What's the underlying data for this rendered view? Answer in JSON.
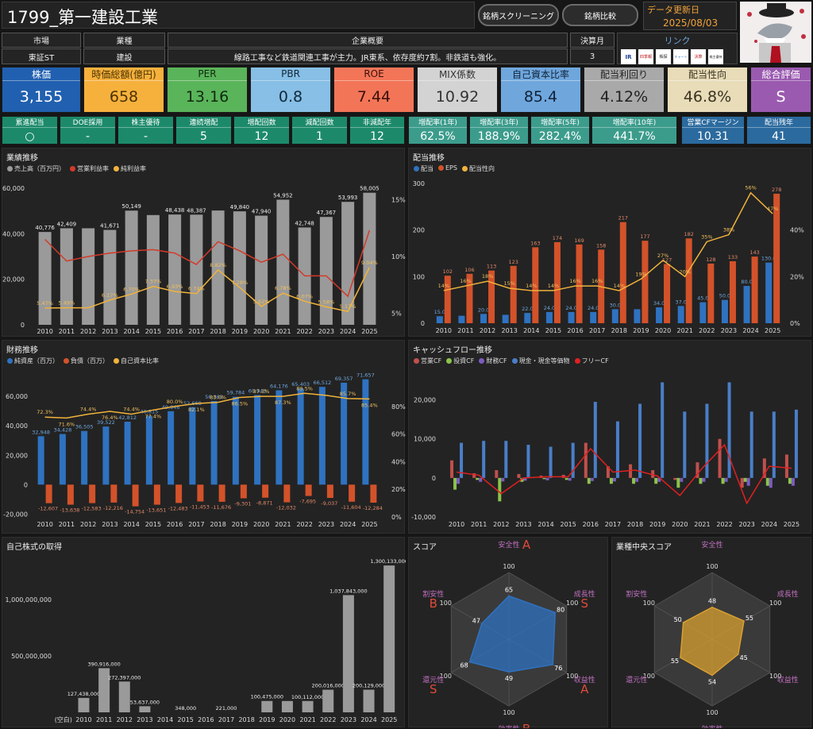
{
  "header": {
    "title": "1799_第一建設工業",
    "screening_label": "銘柄スクリーニング",
    "compare_label": "銘柄比較",
    "update_label": "データ更新日",
    "update_date": "2025/08/03"
  },
  "info": {
    "market_label": "市場",
    "market_value": "東証ST",
    "industry_label": "業種",
    "industry_value": "建設",
    "summary_label": "企業概要",
    "summary_value": "線路工事など鉄道関連工事が主力。JR東系、依存度約7割。非鉄道も強化。",
    "fiscal_label": "決算月",
    "fiscal_value": "3",
    "links_label": "リンク",
    "links": [
      "IR",
      "四季報",
      "株探",
      "チャート",
      "決算",
      "株主優待"
    ]
  },
  "metrics": [
    {
      "label": "株価",
      "value": "3,155",
      "bg": "#2160b0",
      "fg": "#ffffff"
    },
    {
      "label": "時価総額(億円)",
      "value": "658",
      "bg": "#f6b13d",
      "fg": "#4a3200"
    },
    {
      "label": "PER",
      "value": "13.16",
      "bg": "#5ab45a",
      "fg": "#0f2a0f"
    },
    {
      "label": "PBR",
      "value": "0.8",
      "bg": "#87bfe6",
      "fg": "#10283a"
    },
    {
      "label": "ROE",
      "value": "7.44",
      "bg": "#f37558",
      "fg": "#3a100a"
    },
    {
      "label": "MIX係数",
      "value": "10.92",
      "bg": "#d3d3d3",
      "fg": "#333333"
    },
    {
      "label": "自己資本比率",
      "value": "85.4",
      "bg": "#6fa7dd",
      "fg": "#0f2238"
    },
    {
      "label": "配当利回り",
      "value": "4.12%",
      "bg": "#a9a9a9",
      "fg": "#222222"
    },
    {
      "label": "配当性向",
      "value": "46.8%",
      "bg": "#e8dcb9",
      "fg": "#3a3320"
    },
    {
      "label": "総合評価",
      "value": "S",
      "bg": "#9a5ab0",
      "fg": "#ffffff"
    }
  ],
  "stats": [
    {
      "label": "累進配当",
      "value": "○",
      "bg": "#1c8a6a"
    },
    {
      "label": "DOE採用",
      "value": "-",
      "bg": "#1c8a6a"
    },
    {
      "label": "株主優待",
      "value": "-",
      "bg": "#1c8a6a"
    },
    {
      "label": "連続増配",
      "value": "5",
      "bg": "#1c8a6a"
    },
    {
      "label": "増配回数",
      "value": "12",
      "bg": "#1c8a6a"
    },
    {
      "label": "減配回数",
      "value": "1",
      "bg": "#1c8a6a"
    },
    {
      "label": "非減配年",
      "value": "12",
      "bg": "#1c8a6a"
    },
    {
      "label": "増配率(1年)",
      "value": "62.5%",
      "bg": "#3c9c8c"
    },
    {
      "label": "増配率(3年)",
      "value": "188.9%",
      "bg": "#3c9c8c"
    },
    {
      "label": "増配率(5年)",
      "value": "282.4%",
      "bg": "#3c9c8c"
    },
    {
      "label": "増配率(10年)",
      "value": "441.7%",
      "bg": "#3c9c8c"
    },
    {
      "label": "営業CFマージン",
      "value": "10.31",
      "bg": "#2b6a9e"
    },
    {
      "label": "配当残年",
      "value": "41",
      "bg": "#2b6a9e"
    }
  ],
  "colors": {
    "gray": "#9a9a9a",
    "red": "#d33a2a",
    "orange": "#f0b33c",
    "blue": "#2f72c0",
    "green": "#8bc34a",
    "purple": "#7b5cc0",
    "fcf": "#e02020"
  },
  "chart_data": [
    {
      "type": "bar",
      "title": "業績推移",
      "legend": [
        "売上高（百万円）",
        "営業利益率",
        "純利益率"
      ],
      "categories": [
        "2010",
        "2011",
        "2012",
        "2013",
        "2014",
        "2015",
        "2016",
        "2017",
        "2018",
        "2019",
        "2020",
        "2021",
        "2022",
        "2023",
        "2024",
        "2025"
      ],
      "series": [
        {
          "name": "売上高（百万円）",
          "values": [
            40776,
            42409,
            42400,
            41671,
            50149,
            48200,
            48438,
            48387,
            50200,
            49840,
            47940,
            54952,
            42748,
            47367,
            53993,
            58005
          ]
        },
        {
          "name": "営業利益率",
          "values": [
            11.5,
            9.6,
            10.0,
            10.3,
            10.5,
            10.6,
            10.3,
            9.3,
            11.3,
            10.5,
            9.5,
            10.2,
            8.3,
            8.3,
            6.5,
            12.3
          ]
        },
        {
          "name": "純利益率",
          "values": [
            5.47,
            5.49,
            5.49,
            6.17,
            6.7,
            7.37,
            6.93,
            6.74,
            8.82,
            7.28,
            5.62,
            6.78,
            6.07,
            5.58,
            5.17,
            9.04
          ]
        }
      ],
      "data_labels": {
        "bars": [
          "40,776",
          "42,409",
          "",
          "41,671",
          "50,149",
          "",
          "48,438",
          "48,387",
          "",
          "49,840",
          "47,940",
          "54,952",
          "42,748",
          "47,367",
          "53,993",
          "58,005"
        ],
        "net": [
          "5.47%",
          "5.49%",
          "",
          "6.17%",
          "6.70%",
          "7.37%",
          "6.93%",
          "6.74%",
          "8.82%",
          "7.28%",
          "5.62%",
          "6.78%",
          "6.07%",
          "5.58%",
          "5.17%",
          "9.04%"
        ]
      },
      "yticks": [
        "0",
        "20,000",
        "40,000",
        "60,000"
      ],
      "y2ticks": [
        "5%",
        "10%",
        "15%"
      ],
      "ylim": [
        0,
        60000
      ],
      "y2lim": [
        4,
        16
      ]
    },
    {
      "type": "bar",
      "title": "配当推移",
      "legend": [
        "配当",
        "EPS",
        "配当性向"
      ],
      "categories": [
        "2010",
        "2011",
        "2012",
        "2013",
        "2014",
        "2015",
        "2016",
        "2017",
        "2018",
        "2019",
        "2020",
        "2021",
        "2022",
        "2023",
        "2024",
        "2025"
      ],
      "series": [
        {
          "name": "配当",
          "values": [
            15,
            16,
            20,
            18,
            22,
            24,
            24,
            24,
            30,
            30,
            34,
            37,
            45,
            50,
            80,
            130
          ]
        },
        {
          "name": "EPS",
          "values": [
            102,
            106,
            113,
            123,
            163,
            174,
            169,
            158,
            217,
            177,
            127,
            182,
            128,
            133,
            143,
            278
          ]
        },
        {
          "name": "配当性向",
          "values": [
            14,
            16,
            18,
            15,
            14,
            14,
            16,
            16,
            14,
            19,
            27,
            20,
            35,
            38,
            56,
            47
          ]
        }
      ],
      "data_labels": {
        "div": [
          "15.0",
          "",
          "20.0",
          "",
          "22.0",
          "24.0",
          "24.0",
          "24.0",
          "30.0",
          "",
          "34.0",
          "37.0",
          "45.0",
          "50.0",
          "80.0",
          "130.0"
        ],
        "eps": [
          "102",
          "106",
          "113",
          "123",
          "163",
          "174",
          "169",
          "158",
          "217",
          "177",
          "127",
          "182",
          "128",
          "133",
          "143",
          "278"
        ],
        "payout": [
          "14%",
          "16%",
          "18%",
          "15%",
          "14%",
          "14%",
          "16%",
          "16%",
          "14%",
          "19%",
          "27%",
          "20%",
          "35%",
          "38%",
          "56%",
          "47%"
        ]
      },
      "yticks": [
        "0",
        "100",
        "200",
        "300"
      ],
      "y2ticks": [
        "0%",
        "20%",
        "40%"
      ],
      "ylim": [
        0,
        300
      ],
      "y2lim": [
        0,
        60
      ]
    },
    {
      "type": "bar",
      "title": "財務推移",
      "legend": [
        "純資産（百万）",
        "負債（百万）",
        "自己資本比率"
      ],
      "categories": [
        "2010",
        "2011",
        "2012",
        "2013",
        "2014",
        "2015",
        "2016",
        "2017",
        "2018",
        "2019",
        "2020",
        "2021",
        "2022",
        "2023",
        "2024",
        "2025"
      ],
      "series": [
        {
          "name": "純資産（百万）",
          "values": [
            32948,
            34428,
            36505,
            39522,
            42812,
            46815,
            49946,
            52668,
            56861,
            59784,
            60943,
            64176,
            65403,
            66512,
            69357,
            71657
          ]
        },
        {
          "name": "負債（百万）",
          "values": [
            -12607,
            -13638,
            -12583,
            -12216,
            -14754,
            -13651,
            -12483,
            -11453,
            -11676,
            -9301,
            -8871,
            -12032,
            -7695,
            -9037,
            -11604,
            -12284
          ]
        },
        {
          "name": "自己資本比率",
          "values": [
            72.3,
            71.6,
            74.4,
            76.4,
            74.4,
            77.4,
            80.0,
            82.1,
            83.0,
            86.5,
            87.3,
            87.3,
            89.5,
            88.0,
            85.7,
            85.4
          ]
        }
      ],
      "data_labels": {
        "assets": [
          "32,948",
          "34,428",
          "36,505",
          "39,522",
          "42,812",
          "46,815",
          "49,946",
          "52,668",
          "56,861",
          "59,784",
          "60,943",
          "64,176",
          "65,403",
          "66,512",
          "69,357",
          "71,657"
        ],
        "debt": [
          "-12,607",
          "-13,638",
          "-12,583",
          "-12,216",
          "-14,754",
          "-13,651",
          "-12,483",
          "-11,453",
          "-11,676",
          "-9,301",
          "-8,871",
          "-12,032",
          "-7,695",
          "-9,037",
          "-11,604",
          "-12,284"
        ],
        "ratio": [
          "72.3%",
          "71.6%",
          "74.4%",
          "76.4%",
          "74.4%",
          "77.4%",
          "80.0%",
          "82.1%",
          "83.0%",
          "86.5%",
          "87.3%",
          "87.3%",
          "89.5%",
          "",
          "85.7%",
          "85.4%"
        ]
      },
      "yticks": [
        "-20,000",
        "0",
        "20,000",
        "40,000",
        "60,000"
      ],
      "y2ticks": [
        "0%",
        "20%",
        "40%",
        "60%",
        "80%"
      ],
      "ylim": [
        -22000,
        72000
      ],
      "y2lim": [
        0,
        100
      ]
    },
    {
      "type": "bar",
      "title": "キャッシュフロー推移",
      "legend": [
        "営業CF",
        "投資CF",
        "財務CF",
        "現金・現金等価物",
        "フリーCF"
      ],
      "categories": [
        "2010",
        "2011",
        "2012",
        "2013",
        "2014",
        "2015",
        "2016",
        "2017",
        "2018",
        "2019",
        "2020",
        "2021",
        "2022",
        "2023",
        "2024",
        "2025"
      ],
      "series": [
        {
          "name": "営業CF",
          "values": [
            4500,
            1200,
            2000,
            1000,
            600,
            800,
            9000,
            3000,
            3500,
            2000,
            -500,
            4000,
            10000,
            -2500,
            5000,
            6000
          ]
        },
        {
          "name": "投資CF",
          "values": [
            -3000,
            -500,
            -6000,
            -1000,
            -300,
            -500,
            -1500,
            -1500,
            -1500,
            -1500,
            -2500,
            -1500,
            -1500,
            -1000,
            -2000,
            -1500
          ]
        },
        {
          "name": "財務CF",
          "values": [
            -1500,
            -1000,
            -900,
            -700,
            -600,
            -700,
            -800,
            -900,
            -1000,
            -1000,
            -1000,
            -1000,
            -1000,
            -2000,
            -2500,
            -2000
          ]
        },
        {
          "name": "現金・現金等価物",
          "values": [
            9000,
            9500,
            9500,
            8500,
            8000,
            9000,
            19500,
            14500,
            19000,
            24500,
            17000,
            19000,
            24500,
            17000,
            17000,
            17500
          ]
        },
        {
          "name": "フリーCF",
          "values": [
            1500,
            700,
            -4000,
            0,
            300,
            300,
            7500,
            1500,
            2000,
            500,
            -4500,
            2500,
            8500,
            -6500,
            3000,
            2500
          ]
        }
      ],
      "yticks": [
        "-10,000",
        "0",
        "10,000",
        "20,000"
      ],
      "ylim": [
        -10000,
        25000
      ]
    },
    {
      "type": "bar",
      "title": "自己株式の取得",
      "categories": [
        "(空白)",
        "2010",
        "2011",
        "2012",
        "2013",
        "2014",
        "2015",
        "2016",
        "2017",
        "2018",
        "2019",
        "2020",
        "2021",
        "2022",
        "2023",
        "2024",
        "2025"
      ],
      "values": [
        0,
        127438000,
        390916000,
        272397000,
        53637000,
        0,
        348000,
        0,
        221000,
        0,
        100475000,
        100000000,
        100112000,
        200016000,
        1037843000,
        200129000,
        1300133000
      ],
      "data_labels": [
        "",
        "127,438,000",
        "390,916,000",
        "272,397,000",
        "53,637,000",
        "",
        "348,000",
        "",
        "221,000",
        "",
        "100,475,000",
        "",
        "100,112,000",
        "200,016,000",
        "1,037,843,000",
        "200,129,000",
        "1,300,133,000"
      ],
      "yticks": [
        "500,000,000",
        "1,000,000,000"
      ],
      "ylim": [
        0,
        1350000000
      ]
    }
  ],
  "score": {
    "title": "スコア",
    "axes": [
      {
        "name": "安全性",
        "value": 65,
        "grade": "A"
      },
      {
        "name": "成長性",
        "value": 80,
        "grade": "S"
      },
      {
        "name": "収益性",
        "value": 76,
        "grade": "A"
      },
      {
        "name": "効率性",
        "value": 49,
        "grade": "B"
      },
      {
        "name": "還元性",
        "value": 68,
        "grade": "S"
      },
      {
        "name": "割安性",
        "value": 47,
        "grade": "B"
      }
    ],
    "max_label": "100"
  },
  "industry_score": {
    "title": "業種中央スコア",
    "axes": [
      {
        "name": "安全性",
        "value": 48
      },
      {
        "name": "成長性",
        "value": 55
      },
      {
        "name": "収益性",
        "value": 45
      },
      {
        "name": "効率性",
        "value": 54
      },
      {
        "name": "還元性",
        "value": 55
      },
      {
        "name": "割安性",
        "value": 50
      }
    ],
    "max_label": "100"
  }
}
